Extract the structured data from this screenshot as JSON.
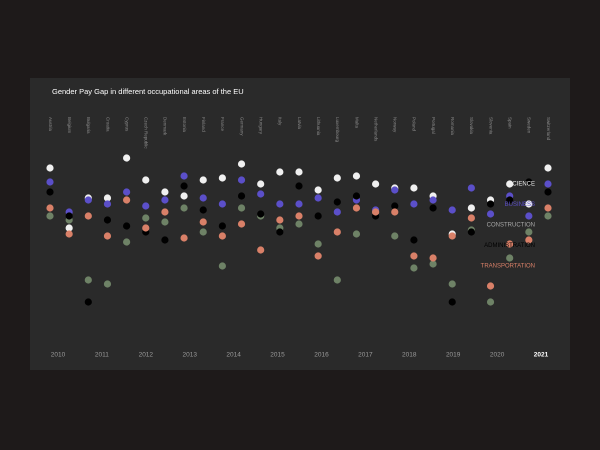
{
  "chart_data": {
    "type": "dot",
    "title": "Gender Pay Gap in different occupational areas of the EU",
    "categories": [
      "Austria",
      "Belgium",
      "Bulgaria",
      "Croatia",
      "Cyprus",
      "Czech Republic",
      "Denmark",
      "Estonia",
      "Finland",
      "France",
      "Germany",
      "Hungary",
      "Italy",
      "Latvia",
      "Lithuania",
      "Luxembourg",
      "Malta",
      "Netherlands",
      "Norway",
      "Poland",
      "Portugal",
      "Romania",
      "Slovakia",
      "Slovenia",
      "Spain",
      "Sweden",
      "Switzerland"
    ],
    "ylim": [
      -5,
      40
    ],
    "legend": "right",
    "series": [
      {
        "name": "SCIENCE",
        "color": "#f0f0f0",
        "values": [
          33,
          18,
          25.5,
          25.5,
          35.5,
          30,
          27,
          26,
          30,
          30.5,
          34,
          29,
          32,
          32,
          27.5,
          30.5,
          31,
          29,
          28,
          28,
          26,
          16.5,
          23,
          25,
          29,
          24,
          33
        ]
      },
      {
        "name": "BUSINESS",
        "color": "#5b4fc9",
        "values": [
          29.5,
          22,
          25,
          24,
          27,
          23.5,
          25,
          31,
          25.5,
          24,
          30,
          26.5,
          24,
          24,
          25.5,
          22,
          25,
          22.5,
          27.5,
          24,
          25,
          22.5,
          28,
          21.5,
          26,
          21,
          29
        ]
      },
      {
        "name": "CONSTRUCTION",
        "color": "#6e8266",
        "values": [
          21,
          20,
          5,
          4,
          14.5,
          20.5,
          19.5,
          23,
          17,
          8.5,
          23,
          21,
          18,
          19,
          14,
          5,
          16.5,
          22,
          16,
          8,
          9,
          4,
          17.5,
          -0.5,
          10.5,
          17,
          21
        ]
      },
      {
        "name": "ADMINISTRATION",
        "color": "#000000",
        "values": [
          27,
          21,
          -0.5,
          20,
          18.5,
          17,
          15,
          28.5,
          22.5,
          18.5,
          26,
          21.5,
          17,
          28.5,
          21,
          24.5,
          26,
          21,
          23.5,
          15,
          23,
          -0.5,
          17,
          24,
          25,
          29.5,
          27
        ]
      },
      {
        "name": "TRANSPORTATION",
        "color": "#d98068",
        "values": [
          23,
          16.5,
          21,
          16,
          25,
          18,
          22,
          15.5,
          19.5,
          16,
          19,
          12.5,
          20,
          21,
          11,
          17,
          23,
          22,
          22,
          11,
          10.5,
          16,
          20.5,
          3.5,
          14,
          15,
          23
        ]
      }
    ],
    "years": [
      2010,
      2011,
      2012,
      2013,
      2014,
      2015,
      2016,
      2017,
      2018,
      2019,
      2020,
      2021
    ],
    "selected_year": 2021
  }
}
